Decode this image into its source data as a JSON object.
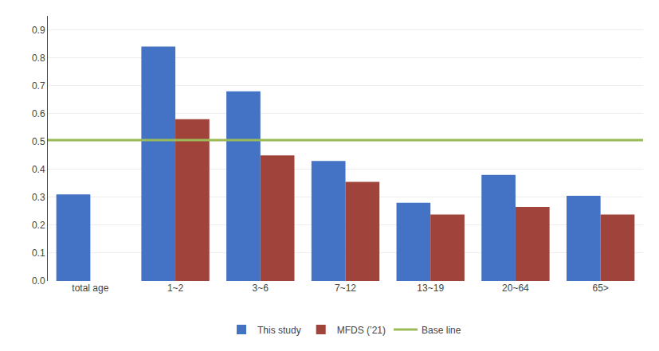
{
  "chart_data": {
    "type": "bar",
    "categories": [
      "total age",
      "1~2",
      "3~6",
      "7~12",
      "13~19",
      "20~64",
      "65>"
    ],
    "series": [
      {
        "name": "This study",
        "color": "#4472C4",
        "values": [
          0.31,
          0.84,
          0.68,
          0.43,
          0.28,
          0.38,
          0.305
        ]
      },
      {
        "name": "MFDS (’21)",
        "color": "#A0433A",
        "values": [
          null,
          0.58,
          0.45,
          0.355,
          0.238,
          0.265,
          0.238
        ]
      }
    ],
    "baseline": {
      "name": "Base line",
      "value": 0.505,
      "color": "#9BBB59"
    },
    "ylim": [
      0,
      0.95
    ],
    "yticks": [
      {
        "value": 0,
        "label": "0.0"
      },
      0.1,
      0.2,
      0.3,
      0.4,
      0.5,
      0.6,
      0.7,
      0.8,
      0.9
    ],
    "grid": true,
    "legend": "bottom"
  }
}
